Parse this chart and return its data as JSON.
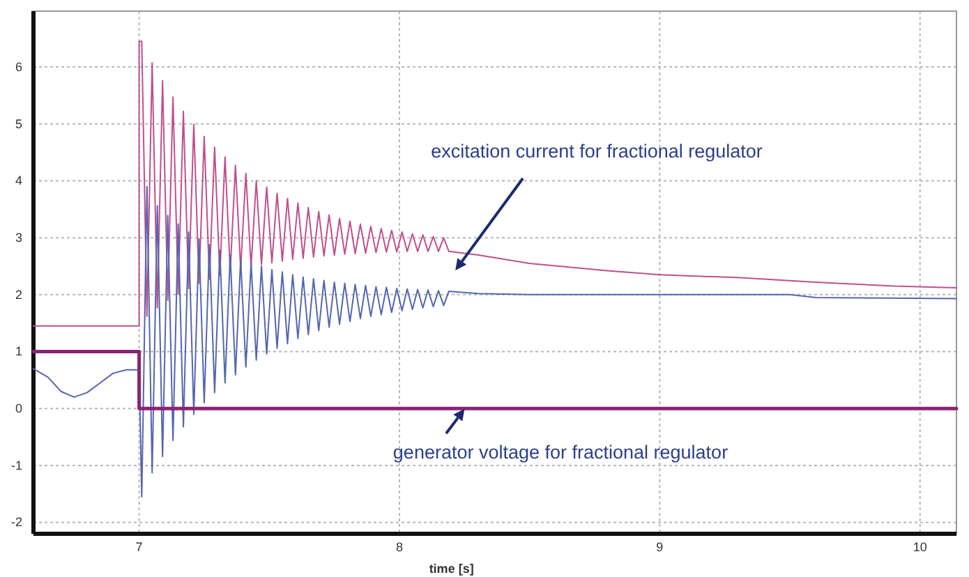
{
  "chart_data": {
    "type": "line",
    "xlabel": "time [s]",
    "xlim": [
      6.594,
      10.14
    ],
    "ylim": [
      -2.2,
      6.98
    ],
    "xticks": [
      7,
      8,
      9,
      10
    ],
    "yticks": [
      -2,
      -1,
      0,
      1,
      2,
      3,
      4,
      5,
      6
    ],
    "grid": true,
    "line_style": "solid",
    "marker": "none",
    "series": [
      {
        "color": "#c0508a",
        "x": [
          6.594,
          7.0,
          7.0,
          7.01,
          7.03,
          7.05,
          7.07,
          7.09,
          7.11,
          7.13,
          7.15,
          7.17,
          7.19,
          7.21,
          7.23,
          7.25,
          7.27,
          7.29,
          7.31,
          7.33,
          7.35,
          7.37,
          7.39,
          7.41,
          7.43,
          7.45,
          7.47,
          7.49,
          7.51,
          7.53,
          7.55,
          7.57,
          7.59,
          7.61,
          7.63,
          7.65,
          7.67,
          7.69,
          7.71,
          7.73,
          7.75,
          7.77,
          7.79,
          7.81,
          7.83,
          7.85,
          7.87,
          7.89,
          7.91,
          7.93,
          7.95,
          7.97,
          7.99,
          8.01,
          8.03,
          8.05,
          8.07,
          8.09,
          8.11,
          8.13,
          8.15,
          8.17,
          8.19,
          8.3,
          8.5,
          8.8,
          9.0,
          9.3,
          9.6,
          9.9,
          10.14
        ],
        "values": [
          1.45,
          1.45,
          6.45,
          6.45,
          1.62,
          6.07,
          1.77,
          5.76,
          1.9,
          5.47,
          2.01,
          5.22,
          2.11,
          4.99,
          2.2,
          4.78,
          2.27,
          4.59,
          2.34,
          4.42,
          2.4,
          4.27,
          2.45,
          4.13,
          2.49,
          4.0,
          2.53,
          3.89,
          2.56,
          3.78,
          2.59,
          3.69,
          2.62,
          3.61,
          2.64,
          3.53,
          2.66,
          3.46,
          2.68,
          3.4,
          2.69,
          3.34,
          2.71,
          3.29,
          2.72,
          3.24,
          2.73,
          3.2,
          2.74,
          3.16,
          2.75,
          3.13,
          2.75,
          3.1,
          2.76,
          3.07,
          2.76,
          3.05,
          2.76,
          3.02,
          2.76,
          3.0,
          2.76,
          2.7,
          2.55,
          2.42,
          2.35,
          2.3,
          2.22,
          2.15,
          2.12
        ]
      },
      {
        "color": "#5466b0",
        "x": [
          6.594,
          6.65,
          6.7,
          6.75,
          6.8,
          6.85,
          6.9,
          6.95,
          7.0,
          7.01,
          7.03,
          7.05,
          7.07,
          7.09,
          7.11,
          7.13,
          7.15,
          7.17,
          7.19,
          7.21,
          7.23,
          7.25,
          7.27,
          7.29,
          7.31,
          7.33,
          7.35,
          7.37,
          7.39,
          7.41,
          7.43,
          7.45,
          7.47,
          7.49,
          7.51,
          7.53,
          7.55,
          7.57,
          7.59,
          7.61,
          7.63,
          7.65,
          7.67,
          7.69,
          7.71,
          7.73,
          7.75,
          7.77,
          7.79,
          7.81,
          7.83,
          7.85,
          7.87,
          7.89,
          7.91,
          7.93,
          7.95,
          7.97,
          7.99,
          8.01,
          8.03,
          8.05,
          8.07,
          8.09,
          8.11,
          8.13,
          8.15,
          8.17,
          8.19,
          8.3,
          8.5,
          9.0,
          9.5,
          9.6,
          10.14
        ],
        "values": [
          0.7,
          0.55,
          0.3,
          0.2,
          0.28,
          0.45,
          0.62,
          0.68,
          0.68,
          -1.55,
          3.9,
          -1.13,
          3.56,
          -0.84,
          3.39,
          -0.56,
          3.24,
          -0.32,
          3.1,
          -0.1,
          2.98,
          0.1,
          2.88,
          0.28,
          2.78,
          0.45,
          2.7,
          0.59,
          2.62,
          0.73,
          2.56,
          0.85,
          2.5,
          0.96,
          2.44,
          1.06,
          2.4,
          1.14,
          2.35,
          1.23,
          2.31,
          1.3,
          2.28,
          1.37,
          2.25,
          1.43,
          2.22,
          1.48,
          2.2,
          1.53,
          2.18,
          1.58,
          2.16,
          1.62,
          2.14,
          1.65,
          2.13,
          1.69,
          2.11,
          1.72,
          2.1,
          1.74,
          2.09,
          1.77,
          2.08,
          1.79,
          2.07,
          1.81,
          2.06,
          2.02,
          2.0,
          2.0,
          2.0,
          1.95,
          1.93
        ]
      },
      {
        "color": "#8c2275",
        "x": [
          6.594,
          7.0,
          7.0,
          10.14
        ],
        "values": [
          1,
          1,
          0,
          0
        ]
      }
    ],
    "annotations": [
      "excitation current for fractional regulator",
      "generator voltage for fractional regulator"
    ]
  }
}
